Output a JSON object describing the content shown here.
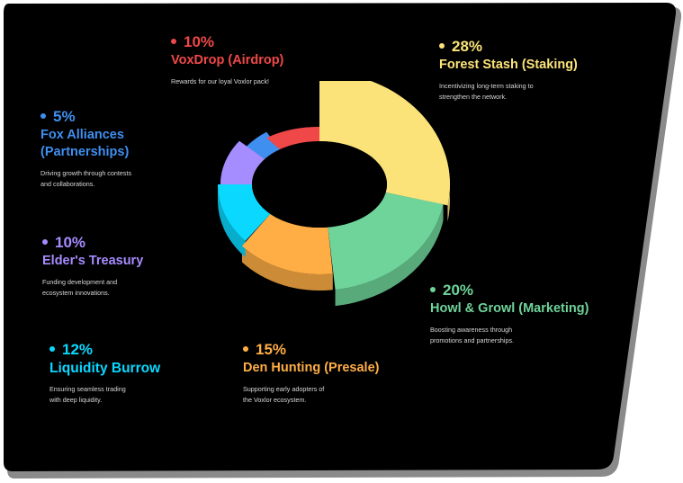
{
  "colors": {
    "background": "#000000",
    "border": "#8a8a8a",
    "airdrop": "#f04848",
    "staking": "#fbe37a",
    "marketing": "#6fd49a",
    "presale": "#ffae45",
    "liquidity": "#0ad8ff",
    "treasury": "#a58cff",
    "partnerships": "#3f8ff0"
  },
  "chart_data": {
    "type": "pie",
    "variant": "3d-donut",
    "slices": [
      {
        "label": "Forest Stash (Staking)",
        "value": 28,
        "percent_text": "28%",
        "description": "Incentivizing long-term staking to\nstrengthen the network.",
        "color": "#fbe37a"
      },
      {
        "label": "Howl & Growl (Marketing)",
        "value": 20,
        "percent_text": "20%",
        "description": "Boosting awareness through\npromotions and partnerships.",
        "color": "#6fd49a"
      },
      {
        "label": "Den Hunting (Presale)",
        "value": 15,
        "percent_text": "15%",
        "description": "Supporting early adopters of\nthe Voxlor ecosystem.",
        "color": "#ffae45"
      },
      {
        "label": "Liquidity Burrow",
        "value": 12,
        "percent_text": "12%",
        "description": "Ensuring seamless trading\nwith deep liquidity.",
        "color": "#0ad8ff"
      },
      {
        "label": "Elder's Treasury",
        "value": 10,
        "percent_text": "10%",
        "description": "Funding development and\necosystem innovations.",
        "color": "#a58cff"
      },
      {
        "label": "Fox Alliances (Partnerships)",
        "value": 5,
        "percent_text": "5%",
        "description": "Driving growth through contests\nand collaborations.",
        "color": "#3f8ff0"
      },
      {
        "label": "VoxDrop (Airdrop)",
        "value": 10,
        "percent_text": "10%",
        "description": "Rewards for our loyal Voxlor pack!",
        "color": "#f04848"
      }
    ]
  }
}
